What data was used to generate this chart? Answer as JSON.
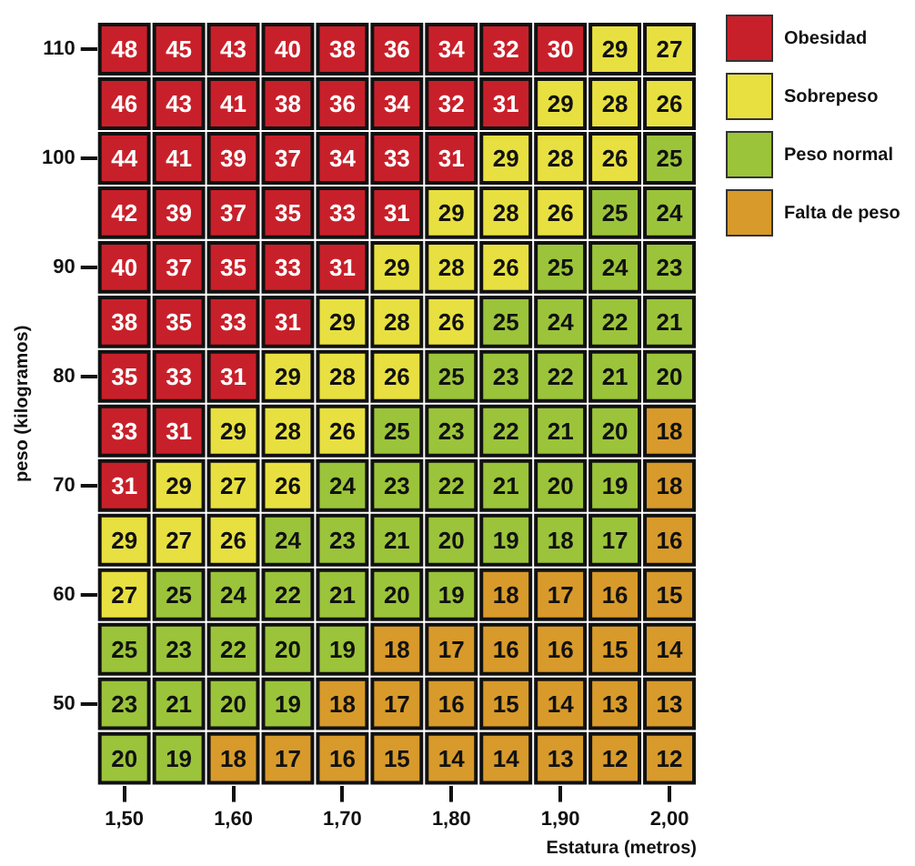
{
  "chart_data": {
    "type": "heatmap",
    "xlabel": "Estatura (metros)",
    "ylabel": "peso (kilogramos)",
    "categories": [
      "1,50",
      null,
      "1,60",
      null,
      "1,70",
      null,
      "1,80",
      null,
      "1,90",
      null,
      "2,00"
    ],
    "y_categories": [
      "110",
      null,
      "100",
      null,
      "90",
      null,
      "80",
      null,
      "70",
      null,
      "60",
      null,
      "50",
      null
    ],
    "cells": [
      [
        48,
        45,
        43,
        40,
        38,
        36,
        34,
        32,
        30,
        29,
        27
      ],
      [
        46,
        43,
        41,
        38,
        36,
        34,
        32,
        31,
        29,
        28,
        26
      ],
      [
        44,
        41,
        39,
        37,
        34,
        33,
        31,
        29,
        28,
        26,
        25
      ],
      [
        42,
        39,
        37,
        35,
        33,
        31,
        29,
        28,
        26,
        25,
        24
      ],
      [
        40,
        37,
        35,
        33,
        31,
        29,
        28,
        26,
        25,
        24,
        23
      ],
      [
        38,
        35,
        33,
        31,
        29,
        28,
        26,
        25,
        24,
        22,
        21
      ],
      [
        35,
        33,
        31,
        29,
        28,
        26,
        25,
        23,
        22,
        21,
        20
      ],
      [
        33,
        31,
        29,
        28,
        26,
        25,
        23,
        22,
        21,
        20,
        18
      ],
      [
        31,
        29,
        27,
        26,
        24,
        23,
        22,
        21,
        20,
        19,
        18
      ],
      [
        29,
        27,
        26,
        24,
        23,
        21,
        20,
        19,
        18,
        17,
        16
      ],
      [
        27,
        25,
        24,
        22,
        21,
        20,
        19,
        18,
        17,
        16,
        15
      ],
      [
        25,
        23,
        22,
        20,
        19,
        18,
        17,
        16,
        16,
        15,
        14
      ],
      [
        23,
        21,
        20,
        19,
        18,
        17,
        16,
        15,
        14,
        13,
        13
      ],
      [
        20,
        19,
        18,
        17,
        16,
        15,
        14,
        14,
        13,
        12,
        12
      ]
    ],
    "colors": [
      [
        "#c8202a",
        "#c8202a",
        "#c8202a",
        "#c8202a",
        "#c8202a",
        "#c8202a",
        "#c8202a",
        "#c8202a",
        "#c8202a",
        "#e8e040",
        "#e8e040"
      ],
      [
        "#c8202a",
        "#c8202a",
        "#c8202a",
        "#c8202a",
        "#c8202a",
        "#c8202a",
        "#c8202a",
        "#c8202a",
        "#e8e040",
        "#e8e040",
        "#e8e040"
      ],
      [
        "#c8202a",
        "#c8202a",
        "#c8202a",
        "#c8202a",
        "#c8202a",
        "#c8202a",
        "#c8202a",
        "#e8e040",
        "#e8e040",
        "#e8e040",
        "#9bc43a"
      ],
      [
        "#c8202a",
        "#c8202a",
        "#c8202a",
        "#c8202a",
        "#c8202a",
        "#c8202a",
        "#e8e040",
        "#e8e040",
        "#e8e040",
        "#9bc43a",
        "#9bc43a"
      ],
      [
        "#c8202a",
        "#c8202a",
        "#c8202a",
        "#c8202a",
        "#c8202a",
        "#e8e040",
        "#e8e040",
        "#e8e040",
        "#9bc43a",
        "#9bc43a",
        "#9bc43a"
      ],
      [
        "#c8202a",
        "#c8202a",
        "#c8202a",
        "#c8202a",
        "#e8e040",
        "#e8e040",
        "#e8e040",
        "#9bc43a",
        "#9bc43a",
        "#9bc43a",
        "#9bc43a"
      ],
      [
        "#c8202a",
        "#c8202a",
        "#c8202a",
        "#e8e040",
        "#e8e040",
        "#e8e040",
        "#9bc43a",
        "#9bc43a",
        "#9bc43a",
        "#9bc43a",
        "#9bc43a"
      ],
      [
        "#c8202a",
        "#c8202a",
        "#e8e040",
        "#e8e040",
        "#e8e040",
        "#9bc43a",
        "#9bc43a",
        "#9bc43a",
        "#9bc43a",
        "#9bc43a",
        "#d89a2a"
      ],
      [
        "#c8202a",
        "#e8e040",
        "#e8e040",
        "#e8e040",
        "#9bc43a",
        "#9bc43a",
        "#9bc43a",
        "#9bc43a",
        "#9bc43a",
        "#9bc43a",
        "#d89a2a"
      ],
      [
        "#e8e040",
        "#e8e040",
        "#e8e040",
        "#9bc43a",
        "#9bc43a",
        "#9bc43a",
        "#9bc43a",
        "#9bc43a",
        "#9bc43a",
        "#9bc43a",
        "#d89a2a"
      ],
      [
        "#e8e040",
        "#9bc43a",
        "#9bc43a",
        "#9bc43a",
        "#9bc43a",
        "#9bc43a",
        "#9bc43a",
        "#d89a2a",
        "#d89a2a",
        "#d89a2a",
        "#d89a2a"
      ],
      [
        "#9bc43a",
        "#9bc43a",
        "#9bc43a",
        "#9bc43a",
        "#9bc43a",
        "#d89a2a",
        "#d89a2a",
        "#d89a2a",
        "#d89a2a",
        "#d89a2a",
        "#d89a2a"
      ],
      [
        "#9bc43a",
        "#9bc43a",
        "#9bc43a",
        "#9bc43a",
        "#d89a2a",
        "#d89a2a",
        "#d89a2a",
        "#d89a2a",
        "#d89a2a",
        "#d89a2a",
        "#d89a2a"
      ],
      [
        "#9bc43a",
        "#9bc43a",
        "#d89a2a",
        "#d89a2a",
        "#d89a2a",
        "#d89a2a",
        "#d89a2a",
        "#d89a2a",
        "#d89a2a",
        "#d89a2a",
        "#d89a2a"
      ]
    ],
    "annotations": [
      "Obesidad",
      "Sobrepeso",
      "Peso normal",
      "Falta de peso"
    ],
    "data_labels": true
  }
}
